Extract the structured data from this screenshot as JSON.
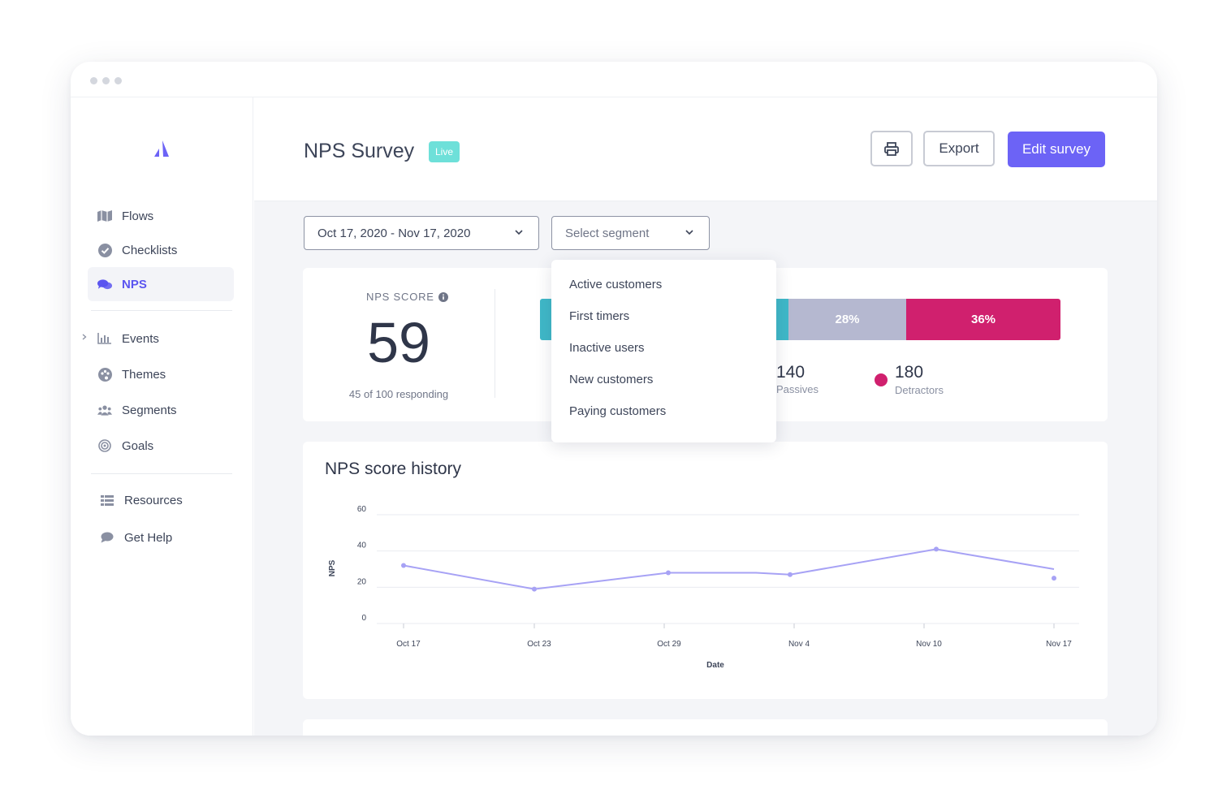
{
  "sidebar": {
    "items": [
      {
        "label": "Flows",
        "icon": "map-icon"
      },
      {
        "label": "Checklists",
        "icon": "check-circle-icon"
      },
      {
        "label": "NPS",
        "icon": "chat-bubbles-icon",
        "active": true
      },
      {
        "label": "Events",
        "icon": "bar-chart-icon"
      },
      {
        "label": "Themes",
        "icon": "palette-icon"
      },
      {
        "label": "Segments",
        "icon": "users-icon"
      },
      {
        "label": "Goals",
        "icon": "target-icon"
      },
      {
        "label": "Resources",
        "icon": "list-icon"
      },
      {
        "label": "Get Help",
        "icon": "chat-icon"
      }
    ]
  },
  "header": {
    "title": "NPS Survey",
    "status_badge": "Live",
    "export_label": "Export",
    "edit_label": "Edit survey"
  },
  "filters": {
    "date_range": "Oct 17, 2020 - Nov 17, 2020",
    "segment_placeholder": "Select segment"
  },
  "segment_dropdown": {
    "options": [
      "Active customers",
      "First timers",
      "Inactive users",
      "New customers",
      "Paying customers"
    ]
  },
  "nps": {
    "label": "NPS SCORE",
    "score": "59",
    "responding": "45 of 100 responding",
    "bar": {
      "passives_pct": "28%",
      "detractors_pct": "36%"
    },
    "passives_count": "140",
    "passives_label": "Passives",
    "detractors_count": "180",
    "detractors_label": "Detractors"
  },
  "colors": {
    "accent": "#6c63f6",
    "promoters": "#3fb8c8",
    "passives": "#b5b8d0",
    "detractors": "#d0206e",
    "live": "#6ee0d9"
  },
  "history": {
    "title": "NPS score history"
  },
  "chart_data": {
    "type": "line",
    "title": "NPS score history",
    "xlabel": "Date",
    "ylabel": "NPS",
    "ylim": [
      0,
      60
    ],
    "yticks": [
      "0",
      "20",
      "40",
      "60"
    ],
    "xticks": [
      "Oct 17",
      "Oct 23",
      "Oct 29",
      "Nov 4",
      "Nov 10",
      "Nov 17"
    ],
    "grid": true,
    "series": [
      {
        "x": [
          "Oct 17",
          "Oct 23",
          "Oct 29",
          "Nov 3",
          "Nov 4",
          "Nov 10",
          "Nov 17"
        ],
        "values": [
          32,
          19,
          28,
          28,
          27,
          41,
          30
        ],
        "color": "#a7a2f5"
      }
    ],
    "extra_points": [
      {
        "x": "Nov 17",
        "y": 25
      }
    ]
  }
}
